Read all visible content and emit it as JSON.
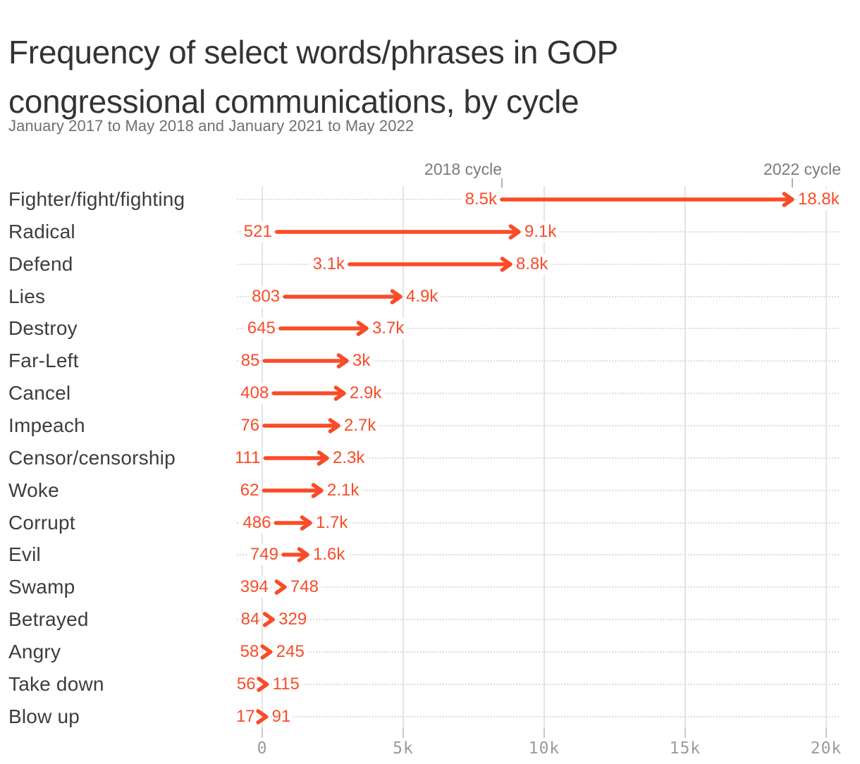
{
  "header": {
    "title": "Frequency of select words/phrases in GOP congressional communications, by cycle",
    "subtitle": "January 2017 to May 2018 and January 2021 to May 2022"
  },
  "colors": {
    "accent": "#f94b28",
    "grid": "#e4e4e4",
    "leader_dots": "#dcdcdc"
  },
  "chart_data": {
    "type": "arrow",
    "title": "Frequency of select words/phrases in GOP congressional communications, by cycle",
    "subtitle": "January 2017 to May 2018 and January 2021 to May 2022",
    "series_names": [
      "2018 cycle",
      "2022 cycle"
    ],
    "annotations": [
      {
        "label": "2018 cycle",
        "value": 8500
      },
      {
        "label": "2022 cycle",
        "value": 18800
      }
    ],
    "x_axis": {
      "range": [
        0,
        20450
      ],
      "grid": true,
      "ticks": [
        {
          "value": 0,
          "label": "0"
        },
        {
          "value": 5000,
          "label": "5k"
        },
        {
          "value": 10000,
          "label": "10k"
        },
        {
          "value": 15000,
          "label": "15k"
        },
        {
          "value": 20000,
          "label": "20k"
        }
      ]
    },
    "rows": [
      {
        "category": "Fighter/fight/fighting",
        "start": 8500,
        "end": 18800,
        "start_label": "8.5k",
        "end_label": "18.8k"
      },
      {
        "category": "Radical",
        "start": 521,
        "end": 9100,
        "start_label": "521",
        "end_label": "9.1k"
      },
      {
        "category": "Defend",
        "start": 3100,
        "end": 8800,
        "start_label": "3.1k",
        "end_label": "8.8k"
      },
      {
        "category": "Lies",
        "start": 803,
        "end": 4900,
        "start_label": "803",
        "end_label": "4.9k"
      },
      {
        "category": "Destroy",
        "start": 645,
        "end": 3700,
        "start_label": "645",
        "end_label": "3.7k"
      },
      {
        "category": "Far-Left",
        "start": 85,
        "end": 3000,
        "start_label": "85",
        "end_label": "3k"
      },
      {
        "category": "Cancel",
        "start": 408,
        "end": 2900,
        "start_label": "408",
        "end_label": "2.9k"
      },
      {
        "category": "Impeach",
        "start": 76,
        "end": 2700,
        "start_label": "76",
        "end_label": "2.7k"
      },
      {
        "category": "Censor/censorship",
        "start": 111,
        "end": 2300,
        "start_label": "111",
        "end_label": "2.3k"
      },
      {
        "category": "Woke",
        "start": 62,
        "end": 2100,
        "start_label": "62",
        "end_label": "2.1k"
      },
      {
        "category": "Corrupt",
        "start": 486,
        "end": 1700,
        "start_label": "486",
        "end_label": "1.7k"
      },
      {
        "category": "Evil",
        "start": 749,
        "end": 1600,
        "start_label": "749",
        "end_label": "1.6k"
      },
      {
        "category": "Swamp",
        "start": 394,
        "end": 748,
        "start_label": "394",
        "end_label": "748"
      },
      {
        "category": "Betrayed",
        "start": 84,
        "end": 329,
        "start_label": "84",
        "end_label": "329"
      },
      {
        "category": "Angry",
        "start": 58,
        "end": 245,
        "start_label": "58",
        "end_label": "245"
      },
      {
        "category": "Take down",
        "start": 56,
        "end": 115,
        "start_label": "56",
        "end_label": "115"
      },
      {
        "category": "Blow up",
        "start": 17,
        "end": 91,
        "start_label": "17",
        "end_label": "91"
      }
    ]
  }
}
